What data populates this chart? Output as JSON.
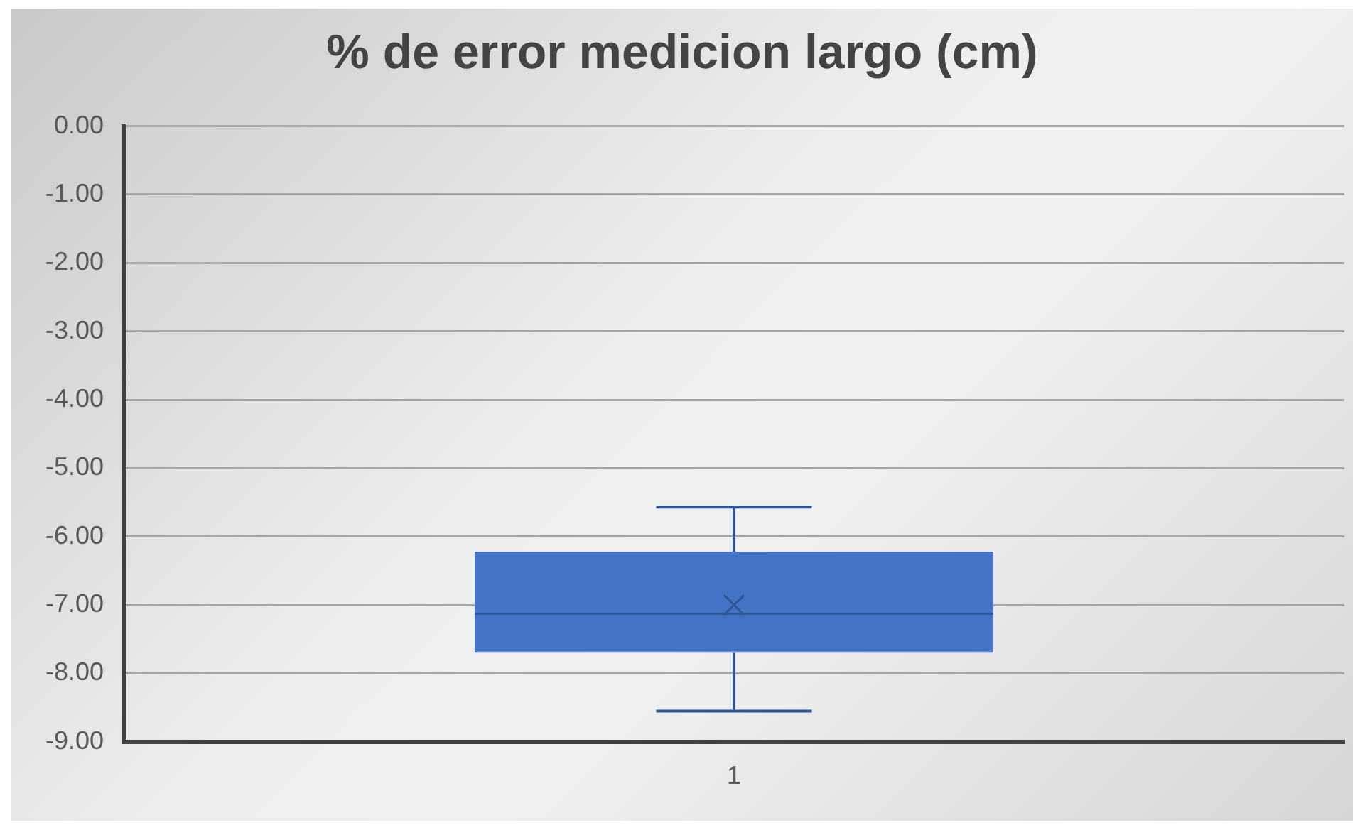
{
  "chart_data": {
    "type": "box",
    "title": "% de error medicion largo (cm)",
    "categories": [
      "1"
    ],
    "boxes": [
      {
        "low": -8.55,
        "q1": -7.7,
        "median": -7.13,
        "q3": -6.22,
        "high": -5.57,
        "mean": -7.0
      }
    ],
    "color": "#4472c4",
    "ylim": [
      -9,
      0
    ],
    "yticks": [
      {
        "value": 0,
        "label": "0.00"
      },
      {
        "value": -1,
        "label": "-1.00"
      },
      {
        "value": -2,
        "label": "-2.00"
      },
      {
        "value": -3,
        "label": "-3.00"
      },
      {
        "value": -4,
        "label": "-4.00"
      },
      {
        "value": -5,
        "label": "-5.00"
      },
      {
        "value": -6,
        "label": "-6.00"
      },
      {
        "value": -7,
        "label": "-7.00"
      },
      {
        "value": -8,
        "label": "-8.00"
      },
      {
        "value": -9,
        "label": "-9.00"
      }
    ],
    "grid": "y"
  }
}
